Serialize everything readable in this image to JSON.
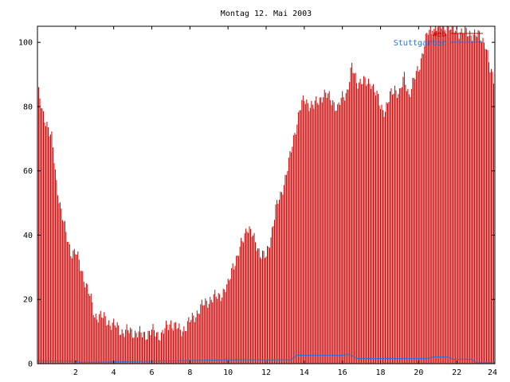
{
  "chart_data": {
    "type": "bar",
    "title": "Montag 12. Mai 2003",
    "xlabel": "",
    "ylabel": "",
    "xlim": [
      0,
      24
    ],
    "ylim": [
      0,
      105
    ],
    "x_ticks": [
      2,
      4,
      6,
      8,
      10,
      12,
      14,
      16,
      18,
      20,
      22,
      24
    ],
    "y_ticks": [
      0,
      20,
      40,
      60,
      80,
      100
    ],
    "grid": false,
    "legend_position": "top-right",
    "colors": {
      "series_main": "#cc0000",
      "series_second": "#2f6fd0",
      "axis": "#000000",
      "background": "#ffffff"
    },
    "legend_entries": [
      {
        "label": "Web",
        "color": "#cc0000"
      },
      {
        "label": "Stuttgarter",
        "color": "#2f6fd0"
      }
    ],
    "series": [
      {
        "name": "Web",
        "style": "impulse",
        "color": "#cc0000",
        "x": [
          0,
          0.25,
          0.5,
          0.75,
          1,
          1.25,
          1.5,
          1.75,
          2,
          2.25,
          2.5,
          2.75,
          3,
          3.25,
          3.5,
          3.75,
          4,
          4.5,
          5,
          5.5,
          6,
          6.5,
          7,
          7.5,
          8,
          8.5,
          9,
          9.5,
          10,
          10.25,
          10.5,
          10.75,
          11,
          11.25,
          11.5,
          11.75,
          12,
          12.25,
          12.5,
          12.75,
          13,
          13.25,
          13.5,
          13.75,
          14,
          14.25,
          14.5,
          14.75,
          15,
          15.25,
          15.5,
          15.75,
          16,
          16.25,
          16.5,
          16.75,
          17,
          17.25,
          17.5,
          17.75,
          18,
          18.25,
          18.5,
          18.75,
          19,
          19.25,
          19.5,
          19.75,
          20,
          20.25,
          20.5,
          20.75,
          21,
          21.25,
          21.5,
          21.75,
          22,
          22.25,
          22.5,
          22.75,
          23,
          23.25,
          23.5,
          23.75,
          24
        ],
        "y": [
          86,
          78,
          75,
          70,
          56,
          48,
          40,
          35,
          35,
          30,
          26,
          21,
          15,
          15,
          14,
          13,
          12,
          10,
          10,
          9,
          10,
          9,
          13,
          10,
          13,
          17,
          20,
          21,
          24,
          31,
          33,
          38,
          43,
          40,
          37,
          34,
          33,
          40,
          48,
          52,
          58,
          64,
          72,
          79,
          82,
          81,
          80,
          82,
          84,
          83,
          82,
          79,
          83,
          85,
          92,
          88,
          88,
          87,
          88,
          84,
          80,
          79,
          83,
          86,
          84,
          89,
          84,
          88,
          92,
          98,
          103,
          104,
          105,
          105,
          105,
          104,
          104,
          103,
          103,
          103,
          102,
          102,
          100,
          91,
          88
        ]
      },
      {
        "name": "Stuttgarter",
        "style": "line",
        "color": "#2f6fd0",
        "x": [
          0,
          2,
          2.3,
          10.2,
          13.3,
          13.6,
          16.0,
          16.3,
          16.8,
          20.5,
          20.8,
          21.5,
          21.8,
          22.8,
          23.0,
          24
        ],
        "y": [
          0.8,
          0.8,
          0.4,
          1.2,
          1.2,
          2.6,
          2.6,
          3.0,
          1.6,
          1.6,
          2.1,
          2.1,
          1.4,
          1.4,
          0.3,
          0.3
        ]
      }
    ]
  }
}
